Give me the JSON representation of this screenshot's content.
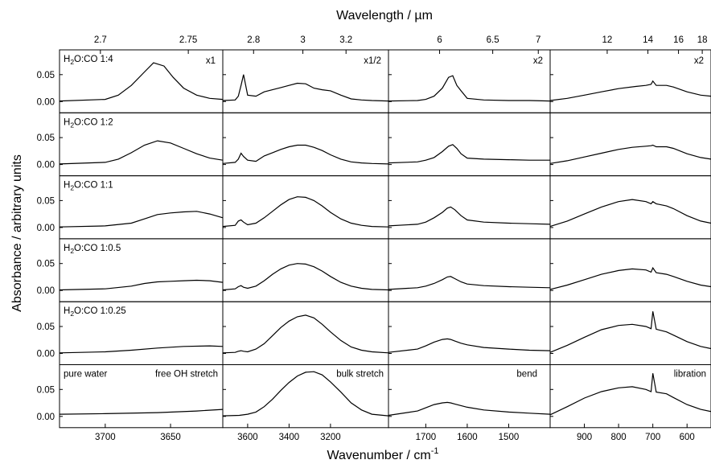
{
  "chart_data": {
    "type": "line",
    "ylabel": "Absorbance / arbitrary units",
    "xlabel_bottom": "Wavenumber / cm",
    "xlabel_bottom_sup": "-1",
    "xlabel_top": "Wavelength / µm",
    "y_ticks": [
      "0.00",
      "0.05"
    ],
    "ylim": [
      0,
      0.09
    ],
    "columns": [
      {
        "name": "free OH stretch",
        "xlim": [
          3735,
          3610
        ],
        "bottom_ticks": [
          3700,
          3650
        ],
        "top_ticks": [
          "2.7",
          "2.75"
        ],
        "top_tick_wavenumbers": [
          3703.7,
          3636.4
        ],
        "scale_label": "x1"
      },
      {
        "name": "bulk stretch",
        "xlim": [
          3720,
          2920
        ],
        "bottom_ticks": [
          3600,
          3400,
          3200
        ],
        "top_ticks": [
          "2.8",
          "3",
          "3.2"
        ],
        "top_tick_wavenumbers": [
          3571.4,
          3333.3,
          3125.0
        ],
        "scale_label": "x1/2"
      },
      {
        "name": "bend",
        "xlim": [
          1790,
          1400
        ],
        "bottom_ticks": [
          1700,
          1600,
          1500
        ],
        "top_ticks": [
          "6",
          "6.5",
          "7"
        ],
        "top_tick_wavenumbers": [
          1666.7,
          1538.5,
          1428.6
        ],
        "scale_label": "x2"
      },
      {
        "name": "libration",
        "xlim": [
          1000,
          530
        ],
        "bottom_ticks": [
          900,
          800,
          700,
          600
        ],
        "top_ticks": [
          "12",
          "14",
          "16",
          "18"
        ],
        "top_tick_wavenumbers": [
          833.3,
          714.3,
          625.0,
          555.6
        ],
        "scale_label": "x2"
      }
    ],
    "panels": [
      {
        "label_main": "H",
        "label_sub": "2",
        "label_rest": "O:CO 1:4",
        "series": [
          {
            "x": [
              3735,
              3700,
              3690,
              3680,
              3670,
              3663,
              3655,
              3648,
              3640,
              3630,
              3620,
              3610
            ],
            "y": [
              0.001,
              0.004,
              0.012,
              0.03,
              0.055,
              0.072,
              0.066,
              0.045,
              0.025,
              0.012,
              0.006,
              0.004
            ]
          },
          {
            "x": [
              3720,
              3660,
              3645,
              3632,
              3620,
              3600,
              3560,
              3520,
              3480,
              3440,
              3400,
              3360,
              3320,
              3280,
              3240,
              3200,
              3150,
              3100,
              3050,
              3000,
              2920
            ],
            "y": [
              0.002,
              0.003,
              0.01,
              0.03,
              0.05,
              0.012,
              0.01,
              0.018,
              0.022,
              0.026,
              0.03,
              0.034,
              0.033,
              0.025,
              0.022,
              0.02,
              0.012,
              0.005,
              0.003,
              0.002,
              0.001
            ]
          },
          {
            "x": [
              1790,
              1720,
              1700,
              1680,
              1660,
              1645,
              1635,
              1625,
              1615,
              1600,
              1560,
              1500,
              1450,
              1400
            ],
            "y": [
              0.001,
              0.002,
              0.004,
              0.01,
              0.025,
              0.045,
              0.048,
              0.03,
              0.02,
              0.006,
              0.003,
              0.002,
              0.002,
              0.001
            ]
          },
          {
            "x": [
              1000,
              950,
              900,
              850,
              800,
              750,
              720,
              705,
              700,
              690,
              660,
              640,
              600,
              560,
              530
            ],
            "y": [
              0.002,
              0.006,
              0.012,
              0.018,
              0.024,
              0.028,
              0.03,
              0.032,
              0.038,
              0.03,
              0.03,
              0.027,
              0.018,
              0.012,
              0.01
            ]
          }
        ]
      },
      {
        "label_main": "H",
        "label_sub": "2",
        "label_rest": "O:CO 1:2",
        "series": [
          {
            "x": [
              3735,
              3700,
              3690,
              3680,
              3670,
              3660,
              3650,
              3640,
              3630,
              3620,
              3610
            ],
            "y": [
              0.001,
              0.004,
              0.01,
              0.022,
              0.036,
              0.044,
              0.04,
              0.03,
              0.02,
              0.012,
              0.008
            ]
          },
          {
            "x": [
              3720,
              3660,
              3645,
              3632,
              3620,
              3600,
              3560,
              3520,
              3480,
              3440,
              3400,
              3360,
              3320,
              3280,
              3240,
              3200,
              3150,
              3100,
              3050,
              3000,
              2920
            ],
            "y": [
              0.002,
              0.004,
              0.01,
              0.021,
              0.015,
              0.008,
              0.006,
              0.016,
              0.022,
              0.028,
              0.033,
              0.036,
              0.036,
              0.032,
              0.026,
              0.018,
              0.01,
              0.005,
              0.003,
              0.002,
              0.001
            ]
          },
          {
            "x": [
              1790,
              1720,
              1700,
              1680,
              1660,
              1645,
              1635,
              1625,
              1615,
              1600,
              1560,
              1500,
              1450,
              1400
            ],
            "y": [
              0.003,
              0.005,
              0.008,
              0.013,
              0.024,
              0.034,
              0.037,
              0.03,
              0.02,
              0.012,
              0.01,
              0.009,
              0.008,
              0.008
            ]
          },
          {
            "x": [
              1000,
              950,
              900,
              850,
              800,
              760,
              720,
              705,
              700,
              690,
              660,
              640,
              600,
              560,
              530
            ],
            "y": [
              0.002,
              0.007,
              0.014,
              0.021,
              0.028,
              0.032,
              0.034,
              0.035,
              0.036,
              0.033,
              0.033,
              0.03,
              0.02,
              0.013,
              0.01
            ]
          }
        ]
      },
      {
        "label_main": "H",
        "label_sub": "2",
        "label_rest": "O:CO 1:1",
        "series": [
          {
            "x": [
              3735,
              3700,
              3680,
              3670,
              3660,
              3650,
              3640,
              3630,
              3620,
              3610
            ],
            "y": [
              0.001,
              0.003,
              0.008,
              0.016,
              0.024,
              0.027,
              0.029,
              0.03,
              0.025,
              0.018
            ]
          },
          {
            "x": [
              3720,
              3660,
              3645,
              3632,
              3620,
              3600,
              3560,
              3520,
              3480,
              3440,
              3400,
              3360,
              3320,
              3280,
              3240,
              3200,
              3150,
              3100,
              3050,
              3000,
              2920
            ],
            "y": [
              0.002,
              0.004,
              0.012,
              0.014,
              0.01,
              0.005,
              0.008,
              0.018,
              0.03,
              0.042,
              0.052,
              0.057,
              0.056,
              0.05,
              0.04,
              0.028,
              0.016,
              0.008,
              0.004,
              0.002,
              0.001
            ]
          },
          {
            "x": [
              1790,
              1720,
              1700,
              1680,
              1660,
              1648,
              1640,
              1630,
              1615,
              1600,
              1560,
              1500,
              1450,
              1400
            ],
            "y": [
              0.003,
              0.006,
              0.01,
              0.018,
              0.028,
              0.036,
              0.038,
              0.033,
              0.022,
              0.014,
              0.01,
              0.008,
              0.007,
              0.006
            ]
          },
          {
            "x": [
              1000,
              950,
              900,
              850,
              800,
              760,
              720,
              705,
              700,
              690,
              660,
              640,
              600,
              560,
              530
            ],
            "y": [
              0.002,
              0.012,
              0.025,
              0.038,
              0.048,
              0.052,
              0.048,
              0.044,
              0.048,
              0.044,
              0.04,
              0.035,
              0.022,
              0.012,
              0.008
            ]
          }
        ]
      },
      {
        "label_main": "H",
        "label_sub": "2",
        "label_rest": "O:CO 1:0.5",
        "series": [
          {
            "x": [
              3735,
              3700,
              3680,
              3670,
              3660,
              3650,
              3640,
              3630,
              3620,
              3610
            ],
            "y": [
              0.001,
              0.003,
              0.008,
              0.013,
              0.016,
              0.017,
              0.018,
              0.019,
              0.018,
              0.015
            ]
          },
          {
            "x": [
              3720,
              3660,
              3645,
              3632,
              3620,
              3600,
              3560,
              3520,
              3480,
              3440,
              3400,
              3360,
              3320,
              3280,
              3240,
              3200,
              3150,
              3100,
              3050,
              3000,
              2920
            ],
            "y": [
              0.001,
              0.003,
              0.007,
              0.009,
              0.006,
              0.004,
              0.008,
              0.018,
              0.03,
              0.04,
              0.047,
              0.05,
              0.049,
              0.044,
              0.036,
              0.026,
              0.015,
              0.008,
              0.004,
              0.002,
              0.001
            ]
          },
          {
            "x": [
              1790,
              1720,
              1700,
              1680,
              1660,
              1648,
              1640,
              1630,
              1615,
              1600,
              1560,
              1500,
              1450,
              1400
            ],
            "y": [
              0.002,
              0.005,
              0.008,
              0.013,
              0.02,
              0.025,
              0.026,
              0.022,
              0.016,
              0.012,
              0.009,
              0.007,
              0.006,
              0.005
            ]
          },
          {
            "x": [
              1000,
              950,
              900,
              850,
              800,
              760,
              720,
              705,
              700,
              690,
              660,
              640,
              600,
              560,
              530
            ],
            "y": [
              0.002,
              0.01,
              0.02,
              0.03,
              0.037,
              0.04,
              0.038,
              0.034,
              0.042,
              0.033,
              0.03,
              0.026,
              0.017,
              0.01,
              0.007
            ]
          }
        ]
      },
      {
        "label_main": "H",
        "label_sub": "2",
        "label_rest": "O:CO 1:0.25",
        "series": [
          {
            "x": [
              3735,
              3700,
              3680,
              3660,
              3640,
              3620,
              3610
            ],
            "y": [
              0.001,
              0.003,
              0.006,
              0.01,
              0.013,
              0.014,
              0.013
            ]
          },
          {
            "x": [
              3720,
              3660,
              3645,
              3632,
              3620,
              3600,
              3560,
              3520,
              3480,
              3440,
              3400,
              3360,
              3320,
              3280,
              3240,
              3200,
              3150,
              3100,
              3050,
              3000,
              2920
            ],
            "y": [
              0.001,
              0.002,
              0.004,
              0.005,
              0.004,
              0.003,
              0.008,
              0.018,
              0.033,
              0.048,
              0.06,
              0.068,
              0.071,
              0.066,
              0.054,
              0.04,
              0.024,
              0.012,
              0.006,
              0.003,
              0.001
            ]
          },
          {
            "x": [
              1790,
              1720,
              1700,
              1680,
              1660,
              1648,
              1640,
              1630,
              1615,
              1600,
              1560,
              1500,
              1450,
              1400
            ],
            "y": [
              0.002,
              0.008,
              0.014,
              0.021,
              0.026,
              0.027,
              0.026,
              0.023,
              0.019,
              0.016,
              0.011,
              0.008,
              0.006,
              0.005
            ]
          },
          {
            "x": [
              1000,
              950,
              900,
              850,
              800,
              760,
              720,
              705,
              700,
              690,
              660,
              640,
              600,
              560,
              530
            ],
            "y": [
              0.002,
              0.015,
              0.03,
              0.044,
              0.052,
              0.054,
              0.05,
              0.046,
              0.078,
              0.045,
              0.04,
              0.034,
              0.022,
              0.013,
              0.009
            ]
          }
        ]
      },
      {
        "label_main": "pure water",
        "label_sub": "",
        "label_rest": "",
        "series": [
          {
            "x": [
              3735,
              3700,
              3660,
              3630,
              3610
            ],
            "y": [
              0.004,
              0.005,
              0.007,
              0.01,
              0.013
            ]
          },
          {
            "x": [
              3720,
              3640,
              3600,
              3560,
              3520,
              3480,
              3440,
              3400,
              3360,
              3320,
              3280,
              3240,
              3200,
              3150,
              3100,
              3050,
              3000,
              2920
            ],
            "y": [
              0.001,
              0.002,
              0.004,
              0.008,
              0.018,
              0.032,
              0.048,
              0.063,
              0.075,
              0.082,
              0.083,
              0.077,
              0.064,
              0.045,
              0.025,
              0.012,
              0.004,
              0.001
            ]
          },
          {
            "x": [
              1790,
              1720,
              1700,
              1680,
              1660,
              1648,
              1640,
              1630,
              1615,
              1600,
              1560,
              1500,
              1450,
              1400
            ],
            "y": [
              0.002,
              0.01,
              0.016,
              0.022,
              0.025,
              0.026,
              0.025,
              0.023,
              0.02,
              0.017,
              0.012,
              0.008,
              0.006,
              0.004
            ]
          },
          {
            "x": [
              1000,
              950,
              900,
              850,
              800,
              760,
              720,
              705,
              700,
              690,
              660,
              640,
              600,
              560,
              530
            ],
            "y": [
              0.003,
              0.018,
              0.034,
              0.046,
              0.053,
              0.055,
              0.05,
              0.046,
              0.08,
              0.045,
              0.042,
              0.035,
              0.022,
              0.013,
              0.009
            ]
          }
        ]
      }
    ],
    "annotations": {
      "free_oh": "free OH stretch",
      "bulk": "bulk stretch",
      "bend": "bend",
      "libration": "libration"
    }
  }
}
